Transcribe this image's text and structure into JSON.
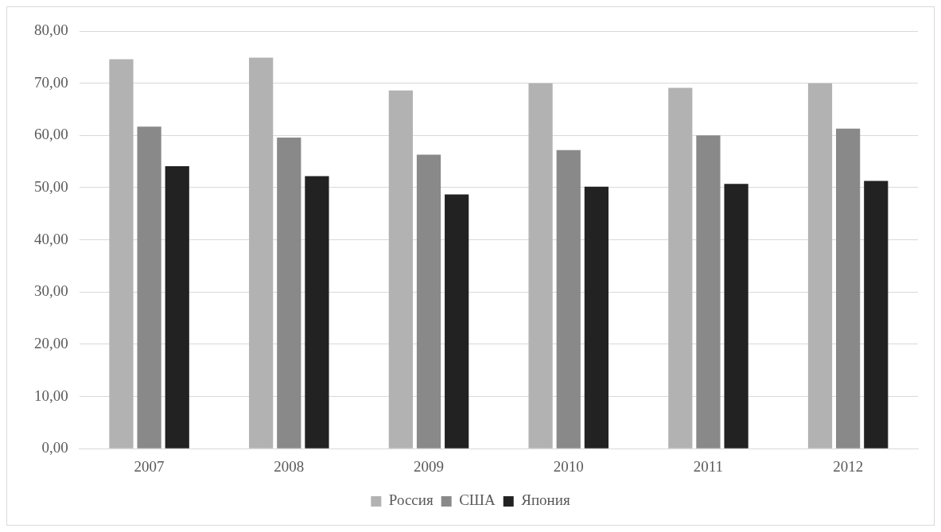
{
  "chart_data": {
    "type": "bar",
    "categories": [
      "2007",
      "2008",
      "2009",
      "2010",
      "2011",
      "2012"
    ],
    "series": [
      {
        "name": "Россия",
        "color": "#b2b2b2",
        "values": [
          74.6,
          74.9,
          68.6,
          70.0,
          69.1,
          70.0
        ]
      },
      {
        "name": "США",
        "color": "#898989",
        "values": [
          61.7,
          59.6,
          56.3,
          57.2,
          60.0,
          61.3
        ]
      },
      {
        "name": "Япония",
        "color": "#222222",
        "values": [
          54.1,
          52.2,
          48.7,
          50.2,
          50.7,
          51.3
        ]
      }
    ],
    "ylim": [
      0,
      80
    ],
    "yticks": [
      {
        "value": 0,
        "label": "0,00"
      },
      {
        "value": 10,
        "label": "10,00"
      },
      {
        "value": 20,
        "label": "20,00"
      },
      {
        "value": 30,
        "label": "30,00"
      },
      {
        "value": 40,
        "label": "40,00"
      },
      {
        "value": 50,
        "label": "50,00"
      },
      {
        "value": 60,
        "label": "60,00"
      },
      {
        "value": 70,
        "label": "70,00"
      },
      {
        "value": 80,
        "label": "80,00"
      }
    ],
    "grid": "y",
    "legend": "bottom"
  }
}
